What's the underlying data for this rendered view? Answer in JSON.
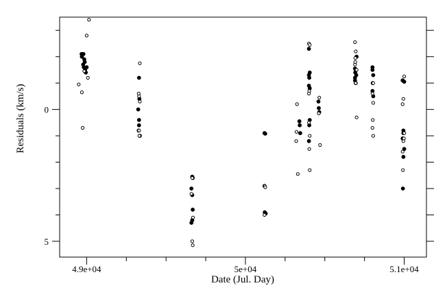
{
  "chart_data": {
    "type": "scatter",
    "title": "",
    "xlabel": "Date (Jul. Day)",
    "ylabel": "Residuals (km/s)",
    "xlim": [
      48820,
      51130
    ],
    "ylim": [
      5.6,
      -3.5
    ],
    "y_inverted": true,
    "grid": false,
    "x_ticks": [
      {
        "value": 48990,
        "label": "4.9e+04"
      },
      {
        "value": 49990,
        "label": "5e+04"
      },
      {
        "value": 50990,
        "label": "5.1e+04"
      }
    ],
    "y_ticks": [
      {
        "value": 0,
        "label": "0"
      },
      {
        "value": 5,
        "label": "5"
      }
    ],
    "series": [
      {
        "marker": "filled",
        "points": [
          [
            48960,
            -2.0
          ],
          [
            48970,
            -2.1
          ],
          [
            48975,
            -1.9
          ],
          [
            48968,
            -1.7
          ],
          [
            48972,
            -1.6
          ],
          [
            48980,
            -1.5
          ],
          [
            48978,
            -1.8
          ],
          [
            48985,
            -1.4
          ],
          [
            48990,
            -1.6
          ],
          [
            48958,
            -2.1
          ],
          [
            49320,
            -1.2
          ],
          [
            49315,
            0.0
          ],
          [
            49320,
            0.4
          ],
          [
            49318,
            0.8
          ],
          [
            49325,
            1.0
          ],
          [
            49322,
            -0.4
          ],
          [
            49320,
            0.6
          ],
          [
            49655,
            2.55
          ],
          [
            49650,
            3.0
          ],
          [
            49655,
            3.25
          ],
          [
            49658,
            3.8
          ],
          [
            49655,
            4.2
          ],
          [
            49650,
            4.3
          ],
          [
            49658,
            2.6
          ],
          [
            50110,
            0.9
          ],
          [
            50115,
            0.92
          ],
          [
            50112,
            3.9
          ],
          [
            50118,
            3.95
          ],
          [
            50110,
            2.9
          ],
          [
            50330,
            0.45
          ],
          [
            50335,
            0.9
          ],
          [
            50332,
            0.6
          ],
          [
            50390,
            -2.3
          ],
          [
            50395,
            -1.4
          ],
          [
            50392,
            -1.2
          ],
          [
            50390,
            -0.9
          ],
          [
            50395,
            0.4
          ],
          [
            50392,
            0.6
          ],
          [
            50390,
            1.2
          ],
          [
            50395,
            -0.8
          ],
          [
            50390,
            -1.3
          ],
          [
            50450,
            -0.3
          ],
          [
            50455,
            0.1
          ],
          [
            50452,
            -0.05
          ],
          [
            50680,
            -1.2
          ],
          [
            50685,
            -1.0
          ],
          [
            50682,
            -1.4
          ],
          [
            50690,
            -2.0
          ],
          [
            50680,
            -1.1
          ],
          [
            50685,
            -1.5
          ],
          [
            50688,
            -1.3
          ],
          [
            50680,
            -1.55
          ],
          [
            50790,
            -1.6
          ],
          [
            50795,
            -1.3
          ],
          [
            50792,
            -1.0
          ],
          [
            50790,
            -0.7
          ],
          [
            50795,
            -0.5
          ],
          [
            50790,
            -1.5
          ],
          [
            50980,
            -1.1
          ],
          [
            50985,
            0.9
          ],
          [
            50980,
            1.1
          ],
          [
            50985,
            0.8
          ],
          [
            50990,
            1.5
          ],
          [
            50982,
            3.0
          ],
          [
            50990,
            -1.05
          ],
          [
            50985,
            1.8
          ]
        ]
      },
      {
        "marker": "open",
        "points": [
          [
            49005,
            -3.4
          ],
          [
            48990,
            -2.8
          ],
          [
            48940,
            -0.95
          ],
          [
            48960,
            -0.65
          ],
          [
            48965,
            0.7
          ],
          [
            48998,
            -1.2
          ],
          [
            48975,
            -1.45
          ],
          [
            49325,
            -1.75
          ],
          [
            49320,
            -0.5
          ],
          [
            49318,
            -0.6
          ],
          [
            49325,
            -0.3
          ],
          [
            49320,
            0.8
          ],
          [
            49322,
            1.0
          ],
          [
            49655,
            5.0
          ],
          [
            49658,
            5.15
          ],
          [
            49660,
            4.1
          ],
          [
            49650,
            3.2
          ],
          [
            49655,
            2.6
          ],
          [
            50112,
            2.9
          ],
          [
            50115,
            2.95
          ],
          [
            50110,
            4.0
          ],
          [
            50315,
            -0.2
          ],
          [
            50310,
            1.2
          ],
          [
            50320,
            2.45
          ],
          [
            50312,
            0.85
          ],
          [
            50390,
            -2.5
          ],
          [
            50395,
            -2.45
          ],
          [
            50392,
            -0.7
          ],
          [
            50390,
            -0.6
          ],
          [
            50395,
            2.3
          ],
          [
            50390,
            0.5
          ],
          [
            50395,
            1.0
          ],
          [
            50392,
            1.5
          ],
          [
            50455,
            -0.45
          ],
          [
            50460,
            1.35
          ],
          [
            50452,
            0.15
          ],
          [
            50680,
            -2.55
          ],
          [
            50685,
            -2.2
          ],
          [
            50682,
            -1.95
          ],
          [
            50690,
            -1.5
          ],
          [
            50680,
            -1.7
          ],
          [
            50685,
            -1.0
          ],
          [
            50690,
            0.3
          ],
          [
            50682,
            -1.8
          ],
          [
            50795,
            -1.0
          ],
          [
            50790,
            -0.6
          ],
          [
            50795,
            -0.25
          ],
          [
            50792,
            0.4
          ],
          [
            50790,
            0.7
          ],
          [
            50795,
            1.0
          ],
          [
            50990,
            -1.25
          ],
          [
            50985,
            -0.4
          ],
          [
            50980,
            -0.2
          ],
          [
            50990,
            0.9
          ],
          [
            50985,
            1.2
          ],
          [
            50980,
            1.6
          ],
          [
            50988,
            1.1
          ],
          [
            50982,
            2.3
          ]
        ]
      }
    ]
  }
}
